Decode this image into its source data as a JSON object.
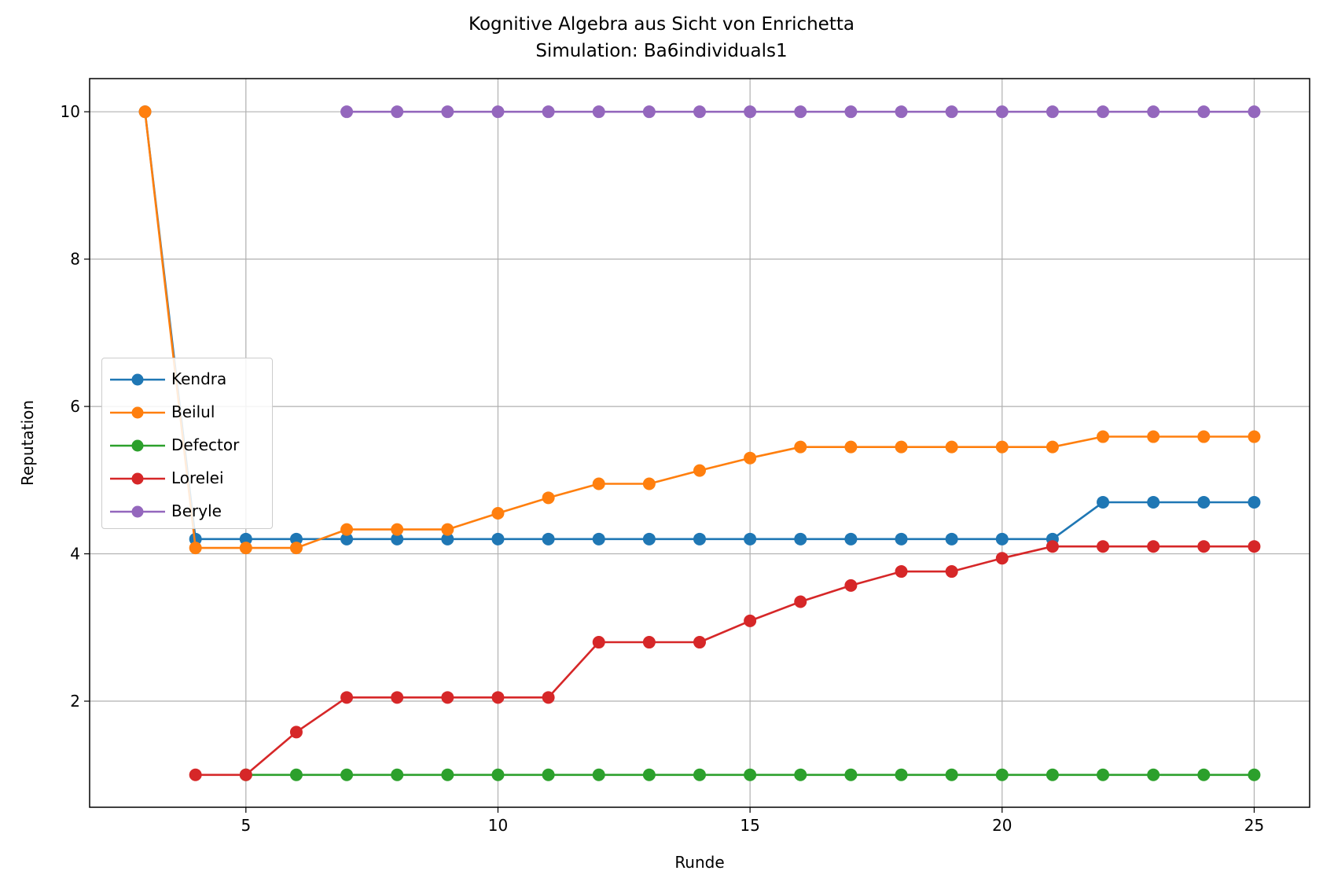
{
  "chart_data": {
    "type": "line",
    "title": "Kognitive Algebra aus Sicht von Enrichetta",
    "subtitle": "Simulation: Ba6individuals1",
    "xlabel": "Runde",
    "ylabel": "Reputation",
    "xlim": [
      1.9,
      26.1
    ],
    "ylim": [
      0.56,
      10.45
    ],
    "xticks": [
      5,
      10,
      15,
      20,
      25
    ],
    "yticks": [
      2,
      4,
      6,
      8,
      10
    ],
    "grid": true,
    "legend_position": "center-left",
    "series": [
      {
        "name": "Kendra",
        "color": "#1f77b4",
        "x": [
          3,
          4,
          5,
          6,
          7,
          8,
          9,
          10,
          11,
          12,
          13,
          14,
          15,
          16,
          17,
          18,
          19,
          20,
          21,
          22,
          23,
          24,
          25
        ],
        "y": [
          10,
          4.2,
          4.2,
          4.2,
          4.2,
          4.2,
          4.2,
          4.2,
          4.2,
          4.2,
          4.2,
          4.2,
          4.2,
          4.2,
          4.2,
          4.2,
          4.2,
          4.2,
          4.2,
          4.7,
          4.7,
          4.7,
          4.7
        ]
      },
      {
        "name": "Beilul",
        "color": "#ff7f0e",
        "x": [
          3,
          4,
          5,
          6,
          7,
          8,
          9,
          10,
          11,
          12,
          13,
          14,
          15,
          16,
          17,
          18,
          19,
          20,
          21,
          22,
          23,
          24,
          25
        ],
        "y": [
          10,
          4.08,
          4.08,
          4.08,
          4.33,
          4.33,
          4.33,
          4.55,
          4.76,
          4.95,
          4.95,
          5.13,
          5.3,
          5.45,
          5.45,
          5.45,
          5.45,
          5.45,
          5.45,
          5.59,
          5.59,
          5.59,
          5.59
        ]
      },
      {
        "name": "Defector",
        "color": "#2ca02c",
        "x": [
          5,
          6,
          7,
          8,
          9,
          10,
          11,
          12,
          13,
          14,
          15,
          16,
          17,
          18,
          19,
          20,
          21,
          22,
          23,
          24,
          25
        ],
        "y": [
          1,
          1,
          1,
          1,
          1,
          1,
          1,
          1,
          1,
          1,
          1,
          1,
          1,
          1,
          1,
          1,
          1,
          1,
          1,
          1,
          1
        ]
      },
      {
        "name": "Lorelei",
        "color": "#d62728",
        "x": [
          4,
          5,
          6,
          7,
          8,
          9,
          10,
          11,
          12,
          13,
          14,
          15,
          16,
          17,
          18,
          19,
          20,
          21,
          22,
          23,
          24,
          25
        ],
        "y": [
          1,
          1,
          1.58,
          2.05,
          2.05,
          2.05,
          2.05,
          2.05,
          2.8,
          2.8,
          2.8,
          3.09,
          3.35,
          3.57,
          3.76,
          3.76,
          3.94,
          4.1,
          4.1,
          4.1,
          4.1,
          4.1
        ]
      },
      {
        "name": "Beryle",
        "color": "#9467bd",
        "x": [
          7,
          8,
          9,
          10,
          11,
          12,
          13,
          14,
          15,
          16,
          17,
          18,
          19,
          20,
          21,
          22,
          23,
          24,
          25
        ],
        "y": [
          10,
          10,
          10,
          10,
          10,
          10,
          10,
          10,
          10,
          10,
          10,
          10,
          10,
          10,
          10,
          10,
          10,
          10,
          10
        ]
      }
    ]
  }
}
